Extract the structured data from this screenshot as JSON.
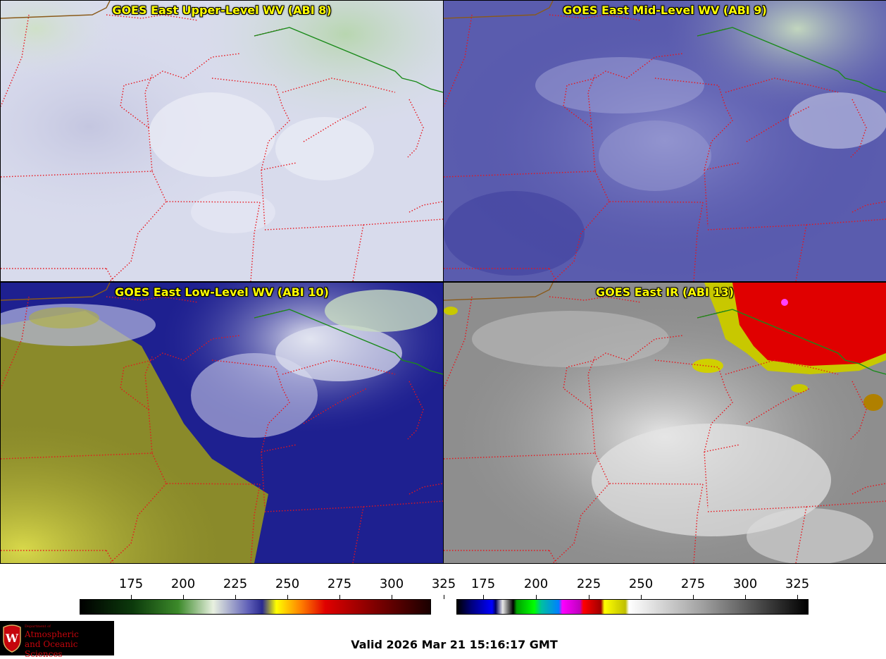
{
  "panels": [
    {
      "title": "GOES East Upper-Level WV (ABI 8)",
      "scheme": "upper"
    },
    {
      "title": "GOES East Mid-Level WV (ABI 9)",
      "scheme": "mid"
    },
    {
      "title": "GOES East Low-Level WV (ABI 10)",
      "scheme": "low"
    },
    {
      "title": "GOES East IR (ABI 13)",
      "scheme": "ir"
    }
  ],
  "colorbars": [
    {
      "name": "water-vapor",
      "ticks": [
        "175",
        "200",
        "225",
        "250",
        "275",
        "300",
        "325"
      ]
    },
    {
      "name": "infrared",
      "ticks": [
        "175",
        "200",
        "225",
        "250",
        "275",
        "300",
        "325"
      ]
    }
  ],
  "colors": {
    "state_border": "#e8141c",
    "country_border": "#1a8a1a",
    "title": "#ffff00"
  },
  "logo": {
    "department": "Department of",
    "line1": "Atmospheric",
    "line2": "and Oceanic Sciences"
  },
  "valid_time": "Valid 2026 Mar 21 15:16:17 GMT"
}
